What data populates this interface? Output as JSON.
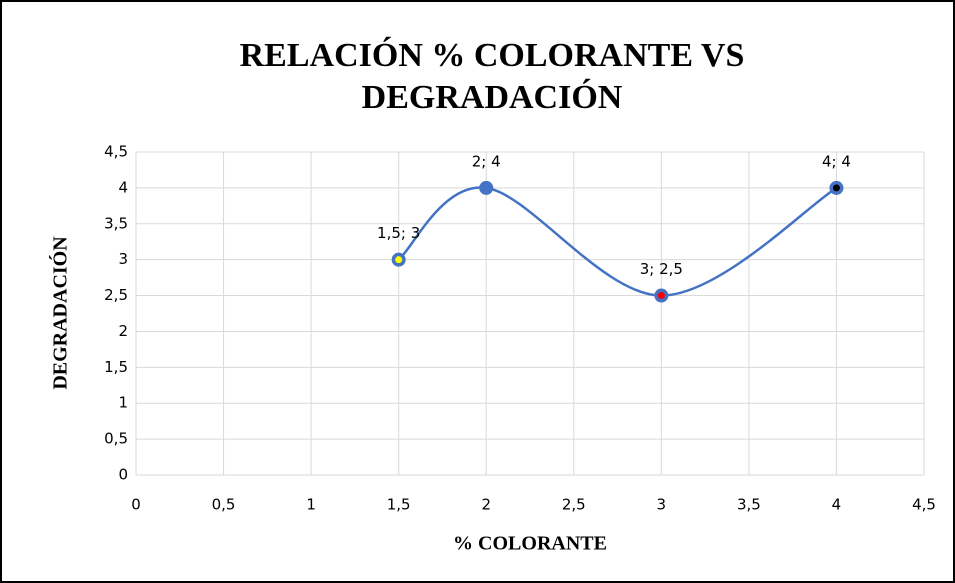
{
  "chart_data": {
    "type": "scatter",
    "title": [
      "RELACIÓN % COLORANTE VS",
      "DEGRADACIÓN"
    ],
    "xlabel": "% COLORANTE",
    "ylabel": "DEGRADACIÓN",
    "x": [
      1.5,
      2,
      3,
      4
    ],
    "series": [
      {
        "name": "DEGRADACIÓN",
        "color": "#4472c4",
        "values": [
          3,
          4,
          2.5,
          4
        ],
        "value_labels": [
          "1,5; 3",
          "2; 4",
          "3; 2,5",
          "4; 4"
        ],
        "marker_colors": [
          "#ffff00",
          "#4472c4",
          "#ff0000",
          "#000000"
        ]
      }
    ],
    "smooth": true,
    "xlim": [
      0,
      4.5
    ],
    "xticks": [
      0,
      {
        "value": 0.5,
        "label": "0,5"
      },
      1,
      {
        "value": 1.5,
        "label": "1,5"
      },
      2,
      {
        "value": 2.5,
        "label": "2,5"
      },
      3,
      {
        "value": 3.5,
        "label": "3,5"
      },
      4,
      {
        "value": 4.5,
        "label": "4,5"
      }
    ],
    "ylim": [
      0,
      4.5
    ],
    "yticks": [
      0,
      {
        "value": 0.5,
        "label": "0,5"
      },
      1,
      {
        "value": 1.5,
        "label": "1,5"
      },
      2,
      {
        "value": 2.5,
        "label": "2,5"
      },
      3,
      {
        "value": 3.5,
        "label": "3,5"
      },
      4,
      {
        "value": 4.5,
        "label": "4,5"
      }
    ],
    "grid": true
  }
}
